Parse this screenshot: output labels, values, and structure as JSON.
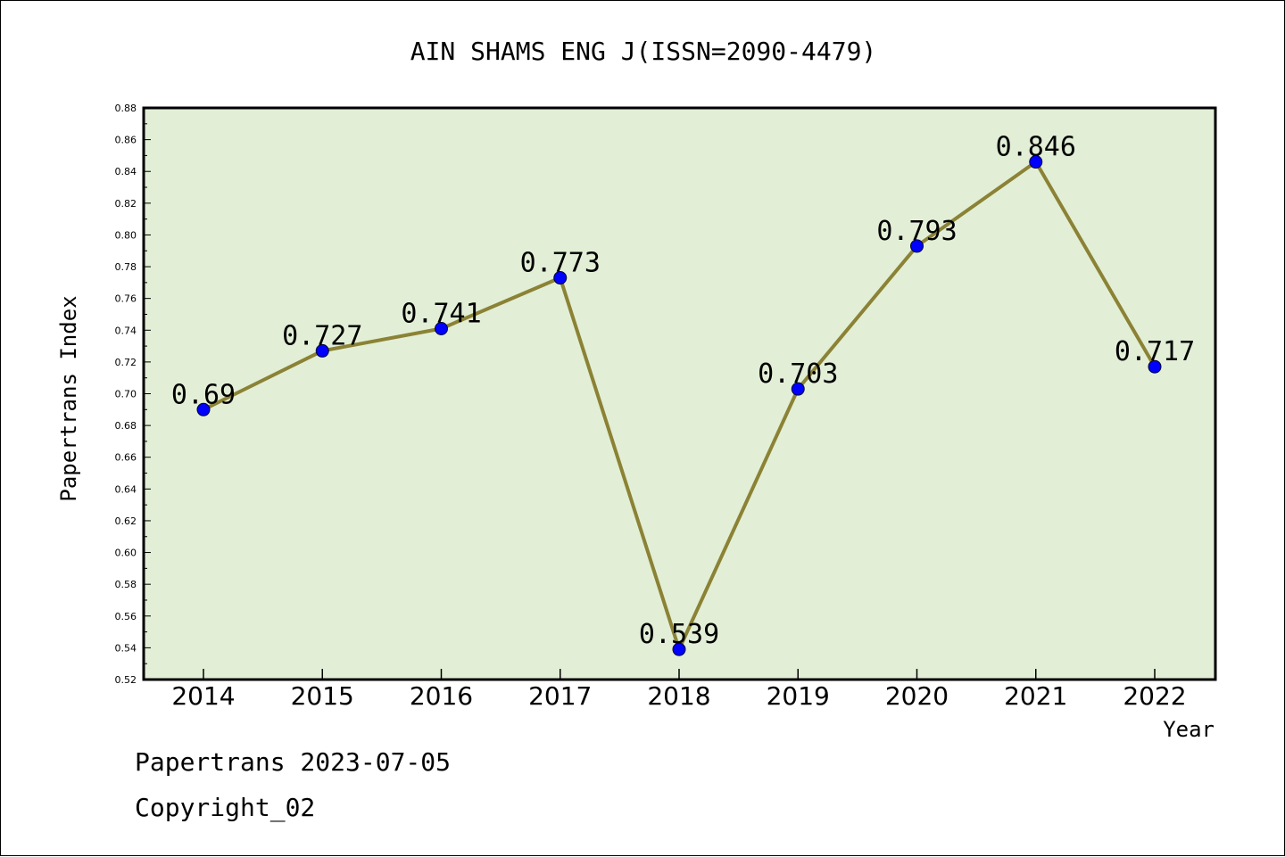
{
  "chart_data": {
    "type": "line",
    "title": "AIN SHAMS ENG J(ISSN=2090-4479)",
    "xlabel": "Year",
    "ylabel": "Papertrans Index",
    "categories": [
      "2014",
      "2015",
      "2016",
      "2017",
      "2018",
      "2019",
      "2020",
      "2021",
      "2022"
    ],
    "values": [
      0.69,
      0.727,
      0.741,
      0.773,
      0.539,
      0.703,
      0.793,
      0.846,
      0.717
    ],
    "data_labels": [
      "0.69",
      "0.727",
      "0.741",
      "0.773",
      "0.539",
      "0.703",
      "0.793",
      "0.846",
      "0.717"
    ],
    "ylim": [
      0.52,
      0.88
    ],
    "yticks": [
      "0.52",
      "0.54",
      "0.56",
      "0.58",
      "0.60",
      "0.62",
      "0.64",
      "0.66",
      "0.68",
      "0.70",
      "0.72",
      "0.74",
      "0.76",
      "0.78",
      "0.80",
      "0.82",
      "0.84",
      "0.86",
      "0.88"
    ],
    "grid": false,
    "colors": {
      "plot_background": "#e2efd6",
      "line": "#8b8235",
      "marker": "#0000ff"
    }
  },
  "footer": {
    "line1": "Papertrans 2023-07-05",
    "line2": "Copyright_02"
  }
}
